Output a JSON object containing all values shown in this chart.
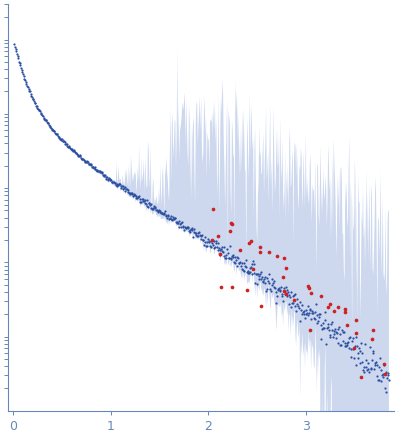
{
  "title": "",
  "xlabel": "",
  "ylabel": "",
  "xlim": [
    -0.05,
    3.9
  ],
  "ylim": [
    -4.5,
    0.5
  ],
  "background_color": "#ffffff",
  "dot_color_main": "#2b4fa0",
  "dot_color_outlier": "#cc2222",
  "error_band_color": "#b8c8e8",
  "axis_color": "#6688bb",
  "tick_color": "#6688bb",
  "xticks": [
    0,
    1,
    2,
    3
  ],
  "n_main_points": 550,
  "n_outlier_points": 45,
  "seed": 7
}
